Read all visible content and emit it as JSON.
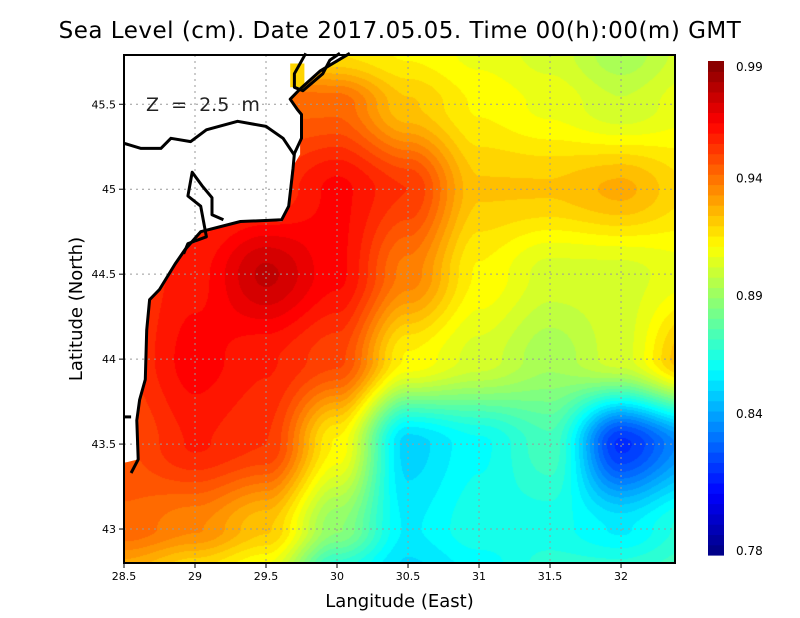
{
  "chart_data": {
    "type": "heatmap",
    "title": "Sea Level (cm). Date 2017.05.05. Time 00(h):00(m) GMT",
    "annotation": "Z  =  2.5  m",
    "xlabel": "Langitude (East)",
    "ylabel": "Latitude (North)",
    "xlim": [
      28.5,
      32.38
    ],
    "ylim": [
      42.8,
      45.79
    ],
    "xticks": [
      "28.5",
      "29",
      "29.5",
      "30",
      "30.5",
      "31",
      "31.5",
      "32"
    ],
    "xtick_values": [
      28.5,
      29,
      29.5,
      30,
      30.5,
      31,
      31.5,
      32
    ],
    "yticks": [
      "45.5",
      "45",
      "44.5",
      "44",
      "43.5",
      "43"
    ],
    "ytick_values": [
      45.5,
      45,
      44.5,
      44,
      43.5,
      43
    ],
    "grid": true,
    "colorbar": {
      "range": [
        0.78,
        0.99
      ],
      "colormap": "jet",
      "ticks": [
        "0.99",
        "0.94",
        "0.89",
        "0.84",
        "0.78"
      ],
      "tick_values": [
        0.99,
        0.94,
        0.89,
        0.84,
        0.78
      ]
    },
    "grid_lon": [
      28.5,
      29,
      29.5,
      30,
      30.5,
      31,
      31.5,
      32,
      32.5
    ],
    "grid_lat": [
      45.8,
      45.5,
      45.0,
      44.5,
      44.0,
      43.5,
      43.0,
      42.75
    ],
    "values": [
      [
        0.94,
        0.94,
        0.93,
        0.92,
        0.915,
        0.91,
        0.905,
        0.895,
        0.905
      ],
      [
        0.95,
        0.95,
        0.945,
        0.945,
        0.925,
        0.915,
        0.91,
        0.903,
        0.91
      ],
      [
        0.955,
        0.955,
        0.955,
        0.965,
        0.955,
        0.925,
        0.925,
        0.93,
        0.92
      ],
      [
        0.955,
        0.962,
        0.978,
        0.965,
        0.94,
        0.915,
        0.905,
        0.905,
        0.91
      ],
      [
        0.955,
        0.966,
        0.96,
        0.952,
        0.915,
        0.905,
        0.895,
        0.905,
        0.93
      ],
      [
        0.95,
        0.96,
        0.955,
        0.915,
        0.852,
        0.862,
        0.875,
        0.818,
        0.84
      ],
      [
        0.945,
        0.938,
        0.925,
        0.89,
        0.858,
        0.866,
        0.865,
        0.858,
        0.87
      ],
      [
        0.93,
        0.92,
        0.91,
        0.868,
        0.853,
        0.86,
        0.87,
        0.87,
        0.875
      ]
    ],
    "land_polygon": [
      [
        28.5,
        45.8
      ],
      [
        30.09,
        45.8
      ],
      [
        29.88,
        45.695
      ],
      [
        29.74,
        45.59
      ],
      [
        29.67,
        45.53
      ],
      [
        29.74,
        45.44
      ],
      [
        29.74,
        45.205
      ],
      [
        29.68,
        45.12
      ],
      [
        29.65,
        44.88
      ],
      [
        29.61,
        44.81
      ],
      [
        29.32,
        44.81
      ],
      [
        29.04,
        44.75
      ],
      [
        28.93,
        44.645
      ],
      [
        28.86,
        44.56
      ],
      [
        28.75,
        44.41
      ],
      [
        28.68,
        44.35
      ],
      [
        28.66,
        44.17
      ],
      [
        28.65,
        43.88
      ],
      [
        28.61,
        43.76
      ],
      [
        28.6,
        43.64
      ],
      [
        28.6,
        43.41
      ],
      [
        28.5,
        43.39
      ]
    ],
    "coastlines": [
      [
        [
          30.09,
          45.8
        ],
        [
          29.88,
          45.695
        ],
        [
          29.74,
          45.59
        ],
        [
          29.67,
          45.53
        ],
        [
          29.72,
          45.47
        ],
        [
          29.75,
          45.44
        ],
        [
          29.75,
          45.3
        ],
        [
          29.7,
          45.21
        ],
        [
          29.69,
          45.12
        ],
        [
          29.66,
          44.9
        ],
        [
          29.61,
          44.82
        ],
        [
          29.32,
          44.81
        ],
        [
          29.04,
          44.75
        ],
        [
          28.93,
          44.645
        ],
        [
          28.86,
          44.56
        ],
        [
          28.75,
          44.41
        ],
        [
          28.68,
          44.35
        ],
        [
          28.66,
          44.17
        ],
        [
          28.65,
          43.88
        ],
        [
          28.61,
          43.76
        ],
        [
          28.59,
          43.64
        ],
        [
          28.6,
          43.41
        ],
        [
          28.55,
          43.33
        ]
      ],
      [
        [
          28.5,
          45.27
        ],
        [
          28.62,
          45.24
        ],
        [
          28.76,
          45.24
        ],
        [
          28.83,
          45.3
        ],
        [
          28.97,
          45.28
        ],
        [
          29.08,
          45.35
        ],
        [
          29.3,
          45.4
        ],
        [
          29.5,
          45.37
        ],
        [
          29.62,
          45.3
        ],
        [
          29.7,
          45.2
        ]
      ],
      [
        [
          28.92,
          44.62
        ],
        [
          28.95,
          44.68
        ],
        [
          29.08,
          44.72
        ],
        [
          29.04,
          44.9
        ],
        [
          28.95,
          44.96
        ],
        [
          28.98,
          45.1
        ],
        [
          29.05,
          45.02
        ],
        [
          29.12,
          44.95
        ],
        [
          29.12,
          44.85
        ],
        [
          29.2,
          44.82
        ]
      ],
      [
        [
          28.5,
          43.66
        ],
        [
          28.55,
          43.66
        ]
      ],
      [
        [
          29.78,
          45.8
        ],
        [
          29.7,
          45.68
        ],
        [
          29.7,
          45.6
        ],
        [
          29.76,
          45.58
        ],
        [
          29.9,
          45.68
        ],
        [
          29.95,
          45.76
        ],
        [
          30.02,
          45.8
        ]
      ]
    ],
    "land_patch": [
      [
        29.67,
        45.74
      ],
      [
        29.77,
        45.74
      ],
      [
        29.77,
        45.6
      ],
      [
        29.67,
        45.6
      ]
    ]
  }
}
